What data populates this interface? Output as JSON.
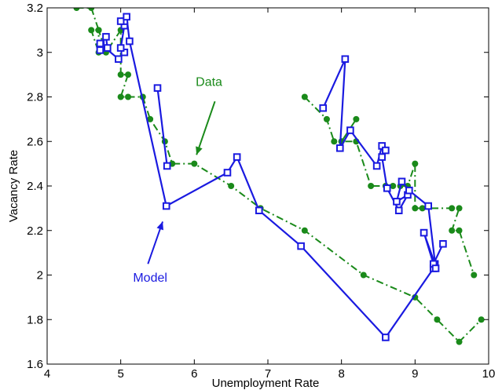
{
  "chart_data": {
    "type": "line",
    "title": "",
    "xlabel": "Unemployment Rate",
    "ylabel": "Vacancy Rate",
    "xlim": [
      4,
      10
    ],
    "ylim": [
      1.6,
      3.2
    ],
    "xticks": [
      4,
      5,
      6,
      7,
      8,
      9,
      10
    ],
    "yticks": [
      1.6,
      1.8,
      2.0,
      2.2,
      2.4,
      2.6,
      2.8,
      3.0,
      3.2
    ],
    "xtick_labels": [
      "4",
      "5",
      "6",
      "7",
      "8",
      "9",
      "10"
    ],
    "ytick_labels": [
      "1.6",
      "1.8",
      "2",
      "2.2",
      "2.4",
      "2.6",
      "2.8",
      "3",
      "3.2"
    ],
    "grid": false,
    "legend": "none",
    "series": [
      {
        "name": "Data",
        "color": "#1a8a1a",
        "line_style": "dash-dot",
        "marker": "filled-circle",
        "segments": [
          {
            "x": [
              4.4,
              4.6,
              4.7,
              4.6,
              4.7,
              4.7,
              4.8,
              5.0,
              5.0,
              5.1,
              5.0,
              5.1,
              5.3,
              5.4,
              5.6,
              5.7,
              6.0,
              6.5,
              6.9,
              7.5,
              8.3,
              9.0,
              9.3,
              9.6,
              9.9
            ],
            "y": [
              3.2,
              3.2,
              3.1,
              3.1,
              3.0,
              3.1,
              3.0,
              3.1,
              2.9,
              2.9,
              2.8,
              2.8,
              2.8,
              2.7,
              2.6,
              2.5,
              2.5,
              2.4,
              2.3,
              2.2,
              2.0,
              1.9,
              1.8,
              1.7,
              1.8
            ]
          },
          {
            "x": [
              7.5,
              7.8,
              7.9,
              8.0,
              8.2,
              8.0,
              8.2,
              8.4,
              8.6,
              8.7,
              8.8,
              8.9,
              9.0,
              9.0,
              9.1,
              9.5,
              9.6,
              9.5,
              9.6,
              9.8
            ],
            "y": [
              2.8,
              2.7,
              2.6,
              2.6,
              2.7,
              2.6,
              2.6,
              2.4,
              2.4,
              2.4,
              2.4,
              2.4,
              2.5,
              2.3,
              2.3,
              2.3,
              2.3,
              2.2,
              2.2,
              2.0
            ]
          }
        ]
      },
      {
        "name": "Model",
        "color": "#1a1ae0",
        "line_style": "solid",
        "marker": "open-square",
        "segments": [
          {
            "x": [
              4.73,
              4.8,
              4.82,
              4.72,
              4.72,
              4.97,
              5.05,
              5.0,
              5.05,
              5.05,
              5.0,
              5.08,
              5.12,
              5.62,
              6.45,
              6.58,
              6.88,
              7.45,
              8.6,
              9.25,
              9.27,
              9.12,
              9.25,
              9.38
            ],
            "y": [
              3.04,
              3.07,
              3.02,
              3.01,
              3.04,
              2.97,
              3.0,
              3.02,
              3.12,
              3.14,
              3.14,
              3.16,
              3.05,
              2.31,
              2.46,
              2.53,
              2.29,
              2.13,
              1.72,
              2.03,
              2.05,
              2.19,
              2.05,
              2.14
            ]
          },
          {
            "x": [
              5.5,
              5.63
            ],
            "y": [
              2.84,
              2.49
            ]
          },
          {
            "x": [
              7.75,
              8.05,
              7.98,
              8.12,
              8.48,
              8.55,
              8.6,
              8.55,
              8.62,
              8.78,
              8.9,
              8.75,
              8.82,
              8.92,
              9.18,
              9.28
            ],
            "y": [
              2.75,
              2.97,
              2.57,
              2.65,
              2.49,
              2.58,
              2.56,
              2.53,
              2.39,
              2.29,
              2.36,
              2.33,
              2.42,
              2.38,
              2.31,
              2.03
            ]
          }
        ]
      }
    ],
    "annotations": [
      {
        "text": "Data",
        "color": "#1a8a1a",
        "label_x": 6.2,
        "label_y": 2.85,
        "arrow_from_x": 6.28,
        "arrow_from_y": 2.78,
        "arrow_to_x": 6.03,
        "arrow_to_y": 2.54
      },
      {
        "text": "Model",
        "color": "#1a1ae0",
        "label_x": 5.4,
        "label_y": 1.97,
        "arrow_from_x": 5.37,
        "arrow_from_y": 2.05,
        "arrow_to_x": 5.57,
        "arrow_to_y": 2.24
      }
    ]
  }
}
